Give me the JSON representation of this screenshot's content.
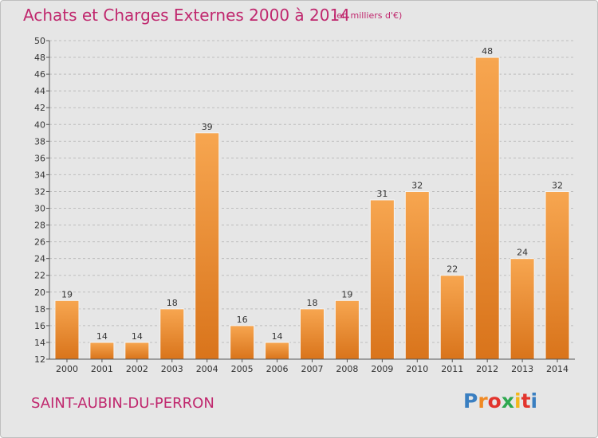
{
  "header": {
    "title": "Achats et Charges Externes 2000 à 2014",
    "subtitle": "(en milliers d'€)"
  },
  "footer": {
    "commune": "SAINT-AUBIN-DU-PERRON",
    "logo_letters": [
      "P",
      "r",
      "o",
      "x",
      "i",
      "t",
      "i"
    ],
    "logo_colors": [
      "#3a7fc1",
      "#f08a24",
      "#e2342d",
      "#2ea84f",
      "#f3b71b",
      "#e2342d",
      "#3a7fc1"
    ]
  },
  "colors": {
    "bar_light": "#f7a650",
    "bar_dark": "#d9741b",
    "title": "#c0286e",
    "background": "#e6e6e6"
  },
  "chart_data": {
    "type": "bar",
    "title": "Achats et Charges Externes 2000 à 2014",
    "xlabel": "",
    "ylabel": "",
    "ylim": [
      12,
      50
    ],
    "yticks": [
      12,
      14,
      16,
      18,
      20,
      22,
      24,
      26,
      28,
      30,
      32,
      34,
      36,
      38,
      40,
      42,
      44,
      46,
      48,
      50
    ],
    "grid": "horizontal dashed",
    "categories": [
      "2000",
      "2001",
      "2002",
      "2003",
      "2004",
      "2005",
      "2006",
      "2007",
      "2008",
      "2009",
      "2010",
      "2011",
      "2012",
      "2013",
      "2014"
    ],
    "values": [
      19,
      14,
      14,
      18,
      39,
      16,
      14,
      18,
      19,
      31,
      32,
      22,
      48,
      24,
      32
    ]
  }
}
